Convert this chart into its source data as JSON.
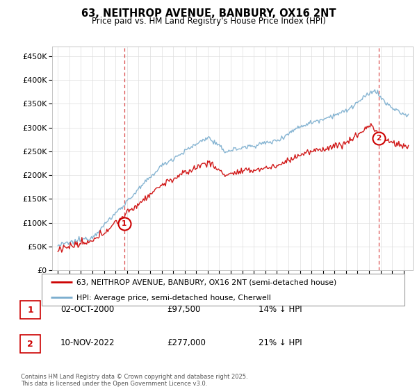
{
  "title_line1": "63, NEITHROP AVENUE, BANBURY, OX16 2NT",
  "title_line2": "Price paid vs. HM Land Registry's House Price Index (HPI)",
  "ylabel_ticks": [
    "£0",
    "£50K",
    "£100K",
    "£150K",
    "£200K",
    "£250K",
    "£300K",
    "£350K",
    "£400K",
    "£450K"
  ],
  "ytick_values": [
    0,
    50000,
    100000,
    150000,
    200000,
    250000,
    300000,
    350000,
    400000,
    450000
  ],
  "ylim": [
    0,
    470000
  ],
  "xlim_start": 1994.5,
  "xlim_end": 2025.8,
  "purchase1_x": 2000.75,
  "purchase1_y": 97500,
  "purchase1_label": "1",
  "purchase1_date": "02-OCT-2000",
  "purchase1_price": "£97,500",
  "purchase1_hpi": "14% ↓ HPI",
  "purchase2_x": 2022.85,
  "purchase2_y": 277000,
  "purchase2_label": "2",
  "purchase2_date": "10-NOV-2022",
  "purchase2_price": "£277,000",
  "purchase2_hpi": "21% ↓ HPI",
  "legend_label1": "63, NEITHROP AVENUE, BANBURY, OX16 2NT (semi-detached house)",
  "legend_label2": "HPI: Average price, semi-detached house, Cherwell",
  "footer": "Contains HM Land Registry data © Crown copyright and database right 2025.\nThis data is licensed under the Open Government Licence v3.0.",
  "line_color_red": "#cc0000",
  "line_color_blue": "#7aadce",
  "vline_color": "#cc0000",
  "grid_color": "#dddddd",
  "background_color": "#ffffff"
}
